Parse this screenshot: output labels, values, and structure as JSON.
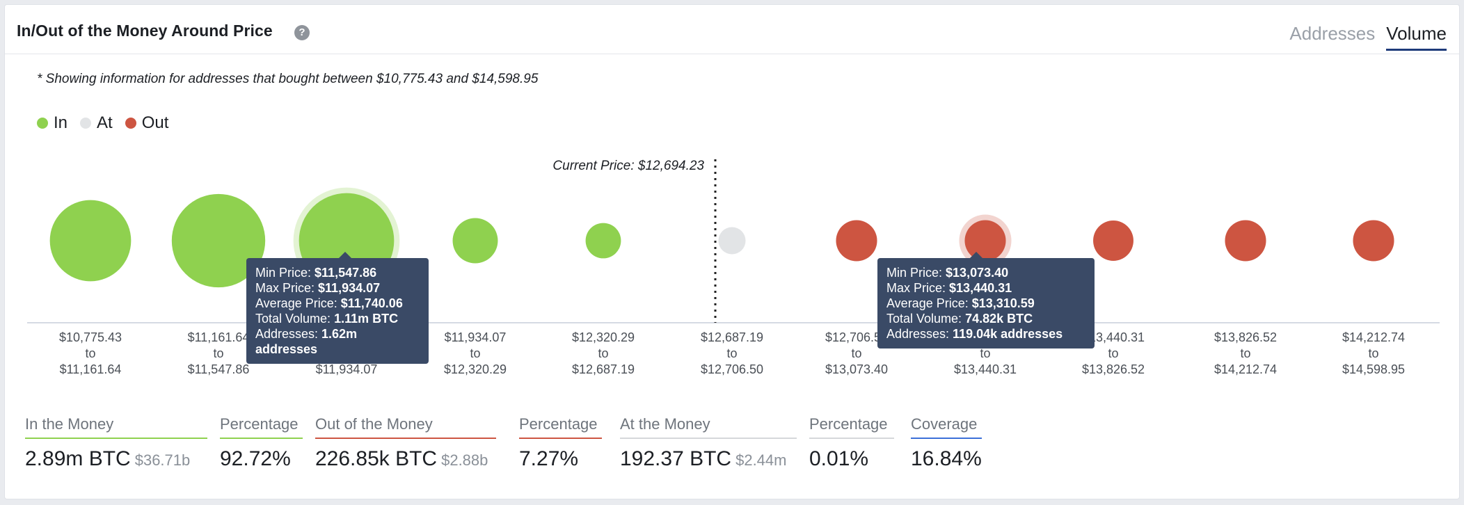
{
  "header": {
    "title": "In/Out of the Money Around Price",
    "help_icon": "question-circle-icon",
    "tabs": [
      {
        "label": "Addresses",
        "active": false
      },
      {
        "label": "Volume",
        "active": true
      }
    ]
  },
  "note": "* Showing information for addresses that bought between $10,775.43 and $14,598.95",
  "legend": [
    {
      "label": "In",
      "color": "#8fd14f"
    },
    {
      "label": "At",
      "color": "#e2e4e6"
    },
    {
      "label": "Out",
      "color": "#cd5541"
    }
  ],
  "colors": {
    "in": "#8fd14f",
    "at": "#e2e4e6",
    "out": "#cd5541",
    "tooltip_bg": "#3a4a66"
  },
  "chart_data": {
    "type": "scatter",
    "current_price_label": "Current Price: $12,694.23",
    "current_price": 12694.23,
    "categories": [
      {
        "from": "$10,775.43",
        "to": "$11,161.64",
        "status": "in",
        "bubble": 89
      },
      {
        "from": "$11,161.64",
        "to": "$11,547.86",
        "status": "in",
        "bubble": 104
      },
      {
        "from": "$11,547.86",
        "to": "$11,934.07",
        "status": "in",
        "bubble": 106
      },
      {
        "from": "$11,934.07",
        "to": "$12,320.29",
        "status": "in",
        "bubble": 45
      },
      {
        "from": "$12,320.29",
        "to": "$12,687.19",
        "status": "in",
        "bubble": 33
      },
      {
        "from": "$12,687.19",
        "to": "$12,706.50",
        "status": "at",
        "bubble": 23
      },
      {
        "from": "$12,706.50",
        "to": "$13,073.40",
        "status": "out",
        "bubble": 40
      },
      {
        "from": "$13,073.40",
        "to": "$13,440.31",
        "status": "out",
        "bubble": 40
      },
      {
        "from": "$13,440.31",
        "to": "$13,826.52",
        "status": "out",
        "bubble": 39
      },
      {
        "from": "$13,826.52",
        "to": "$14,212.74",
        "status": "out",
        "bubble": 40
      },
      {
        "from": "$14,212.74",
        "to": "$14,598.95",
        "status": "out",
        "bubble": 40
      }
    ],
    "to_word": "to",
    "tooltips": [
      {
        "category_index": 2,
        "rows": [
          {
            "label": "Min Price:",
            "value": "$11,547.86"
          },
          {
            "label": "Max Price:",
            "value": "$11,934.07"
          },
          {
            "label": "Average Price:",
            "value": "$11,740.06"
          },
          {
            "label": "Total Volume:",
            "value": "1.11m BTC"
          },
          {
            "label": "Addresses:",
            "value": "1.62m addresses"
          }
        ]
      },
      {
        "category_index": 7,
        "rows": [
          {
            "label": "Min Price:",
            "value": "$13,073.40"
          },
          {
            "label": "Max Price:",
            "value": "$13,440.31"
          },
          {
            "label": "Average Price:",
            "value": "$13,310.59"
          },
          {
            "label": "Total Volume:",
            "value": "74.82k BTC"
          },
          {
            "label": "Addresses:",
            "value": "119.04k addresses"
          }
        ]
      }
    ]
  },
  "stats": [
    {
      "label": "In the Money",
      "value": "2.89m BTC",
      "sub": "$36.71b",
      "color": "#8fd14f"
    },
    {
      "label": "Percentage",
      "value": "92.72%",
      "sub": "",
      "color": "#8fd14f"
    },
    {
      "label": "Out of the Money",
      "value": "226.85k BTC",
      "sub": "$2.88b",
      "color": "#cd5541"
    },
    {
      "label": "Percentage",
      "value": "7.27%",
      "sub": "",
      "color": "#cd5541"
    },
    {
      "label": "At the Money",
      "value": "192.37 BTC",
      "sub": "$2.44m",
      "color": "#d5d7da"
    },
    {
      "label": "Percentage",
      "value": "0.01%",
      "sub": "",
      "color": "#d5d7da"
    },
    {
      "label": "Coverage",
      "value": "16.84%",
      "sub": "",
      "color": "#3b6fd8"
    }
  ]
}
